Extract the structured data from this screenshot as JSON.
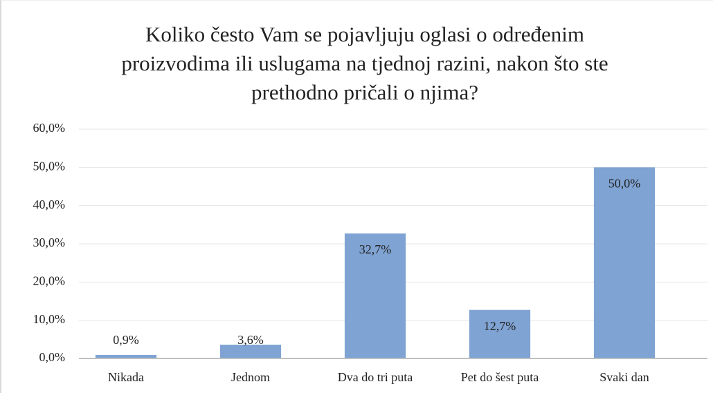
{
  "chart_data": {
    "type": "bar",
    "title": "Koliko često Vam se pojavljuju oglasi o određenim proizvodima ili uslugama na tjednoj razini, nakon što ste prethodno pričali o njima?",
    "categories": [
      "Nikada",
      "Jednom",
      "Dva do tri puta",
      "Pet do šest puta",
      "Svaki dan"
    ],
    "values": [
      0.9,
      3.6,
      32.7,
      12.7,
      50.0
    ],
    "value_labels": [
      "0,9%",
      "3,6%",
      "32,7%",
      "12,7%",
      "50,0%"
    ],
    "color": "#7fa3d2",
    "ylim": [
      0,
      60
    ],
    "yticks": [
      {
        "value": 0,
        "label": "0,0%"
      },
      {
        "value": 10,
        "label": "10,0%"
      },
      {
        "value": 20,
        "label": "20,0%"
      },
      {
        "value": 30,
        "label": "30,0%"
      },
      {
        "value": 40,
        "label": "40,0%"
      },
      {
        "value": 50,
        "label": "50,0%"
      },
      {
        "value": 60,
        "label": "60,0%"
      }
    ],
    "grid": true
  }
}
